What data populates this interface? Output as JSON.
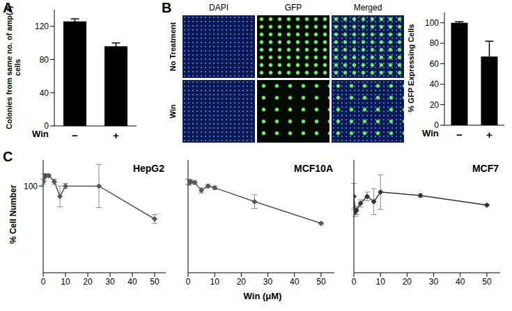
{
  "panel_labels": [
    "A",
    "B",
    "C"
  ],
  "micrographs": {
    "columns": [
      "DAPI",
      "GFP",
      "Merged"
    ],
    "rows": [
      "No Treatment",
      "Win"
    ]
  },
  "chart_data": [
    {
      "type": "bar",
      "y_label": "Colonies from same no. of amp(+) cells",
      "x_label": "Win",
      "categories": [
        "−",
        "+"
      ],
      "values": [
        126,
        96
      ],
      "errors": [
        3,
        4
      ],
      "color": "#000000",
      "ylim": [
        0,
        140
      ],
      "yticks": [
        0,
        40,
        80,
        120
      ]
    },
    {
      "type": "bar",
      "y_label": "% GFP Expressing Cells",
      "x_label": "Win",
      "categories": [
        "−",
        "+"
      ],
      "values": [
        100,
        67
      ],
      "errors": [
        1,
        15
      ],
      "color": "#000000",
      "ylim": [
        0,
        110
      ],
      "yticks": [
        0,
        20,
        40,
        60,
        80,
        100
      ]
    },
    {
      "type": "line",
      "title": "HepG2",
      "y_label": "% Cell Number",
      "x": [
        0,
        0.5,
        1,
        2.5,
        5,
        7.5,
        10,
        25,
        50
      ],
      "values": [
        105,
        110,
        112,
        112,
        105,
        88,
        100,
        100,
        62
      ],
      "errors": [
        3,
        4,
        2,
        2,
        3,
        12,
        3,
        25,
        5
      ],
      "color": "#555555",
      "marker": "diamond",
      "xlim": [
        0,
        55
      ],
      "xticks": [
        0,
        10,
        20,
        30,
        40,
        50
      ],
      "ylim": [
        0,
        130
      ],
      "yticks": [
        100
      ]
    },
    {
      "type": "line",
      "title": "MCF10A",
      "x_label": "Win (μM)",
      "x": [
        0,
        0.5,
        1,
        2.5,
        5,
        7.5,
        10,
        25,
        50
      ],
      "values": [
        105,
        104,
        105,
        104,
        95,
        100,
        98,
        82,
        57
      ],
      "errors": [
        3,
        3,
        2,
        2,
        3,
        2,
        2,
        8,
        1
      ],
      "color": "#555555",
      "marker": "diamond",
      "xlim": [
        0,
        55
      ],
      "xticks": [
        0,
        10,
        20,
        30,
        40,
        50
      ],
      "ylim": [
        0,
        130
      ],
      "tick_labels": "x"
    },
    {
      "type": "line",
      "title": "MCF7",
      "x": [
        0,
        0.5,
        1,
        2.5,
        5,
        7.5,
        10,
        25,
        50
      ],
      "values": [
        88,
        70,
        72,
        80,
        88,
        82,
        93,
        89,
        78
      ],
      "errors": [
        15,
        5,
        5,
        4,
        5,
        15,
        20,
        2,
        1
      ],
      "color": "#333333",
      "marker": "diamond",
      "xlim": [
        0,
        55
      ],
      "xticks": [
        0,
        10,
        20,
        30,
        40,
        50
      ],
      "ylim": [
        0,
        130
      ],
      "tick_labels": "x"
    }
  ]
}
